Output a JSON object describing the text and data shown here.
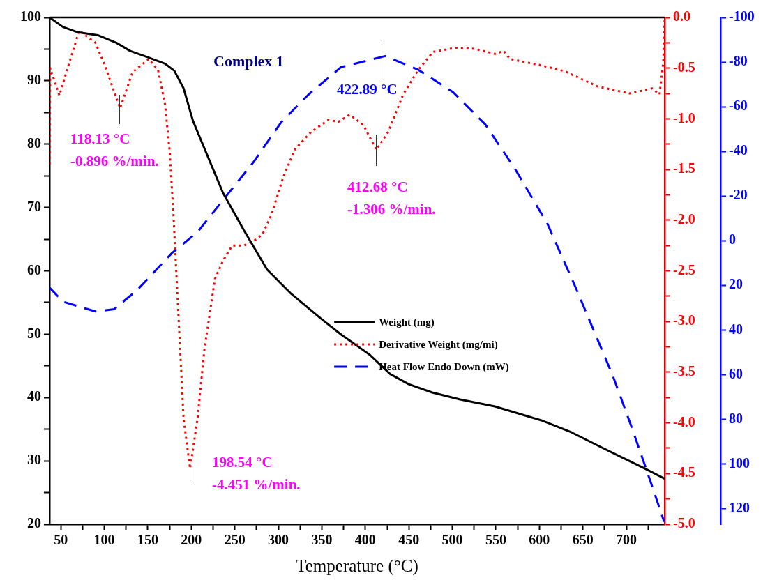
{
  "chart_data": {
    "type": "line",
    "xlabel": "Temperature (°C)",
    "legend": "center",
    "grid": false,
    "xlim": [
      37,
      744
    ],
    "xticks": [
      50,
      {
        "value": 75,
        "label": null
      },
      100,
      {
        "value": 125,
        "label": null
      },
      150,
      {
        "value": 175,
        "label": null
      },
      200,
      {
        "value": 225,
        "label": null
      },
      250,
      {
        "value": 275,
        "label": null
      },
      300,
      {
        "value": 325,
        "label": null
      },
      350,
      {
        "value": 375,
        "label": null
      },
      400,
      {
        "value": 425,
        "label": null
      },
      450,
      {
        "value": 475,
        "label": null
      },
      500,
      {
        "value": 525,
        "label": null
      },
      550,
      {
        "value": 575,
        "label": null
      },
      600,
      {
        "value": 625,
        "label": null
      },
      650,
      {
        "value": 675,
        "label": null
      },
      700,
      {
        "value": 725,
        "label": null
      }
    ],
    "ylim": [
      20,
      100
    ],
    "yticks": [
      20,
      {
        "value": 25,
        "label": null
      },
      30,
      {
        "value": 35,
        "label": null
      },
      40,
      {
        "value": 45,
        "label": null
      },
      50,
      {
        "value": 55,
        "label": null
      },
      60,
      {
        "value": 65,
        "label": null
      },
      70,
      {
        "value": 75,
        "label": null
      },
      80,
      {
        "value": 85,
        "label": null
      },
      90,
      {
        "value": 95,
        "label": null
      },
      100
    ],
    "y2lim": [
      -5,
      0
    ],
    "y2ticks": [
      {
        "value": -5,
        "label": "-5.0"
      },
      {
        "value": -4.75,
        "label": null
      },
      {
        "value": -4.5,
        "label": "-4.5"
      },
      {
        "value": -4.25,
        "label": null
      },
      {
        "value": -4,
        "label": "-4.0"
      },
      {
        "value": -3.75,
        "label": null
      },
      {
        "value": -3.5,
        "label": "-3.5"
      },
      {
        "value": -3.25,
        "label": null
      },
      {
        "value": -3,
        "label": "-3.0"
      },
      {
        "value": -2.75,
        "label": null
      },
      {
        "value": -2.5,
        "label": "-2.5"
      },
      {
        "value": -2.25,
        "label": null
      },
      {
        "value": -2,
        "label": "-2.0"
      },
      {
        "value": -1.75,
        "label": null
      },
      {
        "value": -1.5,
        "label": "-1.5"
      },
      {
        "value": -1.25,
        "label": null
      },
      {
        "value": -1,
        "label": "-1.0"
      },
      {
        "value": -0.75,
        "label": null
      },
      {
        "value": -0.5,
        "label": "-0.5"
      },
      {
        "value": -0.25,
        "label": null
      },
      {
        "value": 0,
        "label": "0.0"
      }
    ],
    "y3lim": [
      127,
      -100
    ],
    "y3ticks": [
      -100,
      -80,
      -60,
      -40,
      -20,
      0,
      20,
      40,
      60,
      80,
      100,
      120
    ],
    "series": [
      {
        "name": "Weight (mg)",
        "color": "#000000",
        "line_style": "solid",
        "x": [
          37,
          52.4,
          68.5,
          92.4,
          113.8,
          129.8,
          148.4,
          169.8,
          180.4,
          191.1,
          201.8,
          215.1,
          236.4,
          260.4,
          287.1,
          313.8,
          348.6,
          372.5,
          404.6,
          428.6,
          449.9,
          476.8,
          508.8,
          548.8,
          575.5,
          602.2,
          637,
          669,
          695.7,
          722.4,
          744
        ],
        "values": [
          100,
          98.5,
          97.7,
          97.2,
          96.0,
          94.7,
          93.8,
          92.7,
          91.6,
          88.8,
          83.7,
          79.3,
          72.3,
          66.4,
          60.2,
          56.5,
          52.5,
          49.9,
          46.8,
          43.7,
          42.1,
          40.8,
          39.7,
          38.6,
          37.5,
          36.4,
          34.5,
          32.3,
          30.5,
          28.7,
          27.2
        ]
      },
      {
        "name": "Derivative Weight (mg/mi)",
        "color": "#ff0000",
        "line_style": "dotted",
        "axis": "y2",
        "x": [
          37,
          37.8,
          48.4,
          52.5,
          71.1,
          89.8,
          100.4,
          118.13,
          132.4,
          151.1,
          161.8,
          169.8,
          175.1,
          179.1,
          183.1,
          187.1,
          191.1,
          198.54,
          207.1,
          215.1,
          227.1,
          236.4,
          247,
          260.4,
          271.1,
          281.8,
          292.4,
          305.8,
          319.1,
          337.6,
          357.6,
          369,
          381.9,
          397.6,
          412.68,
          426.2,
          443.4,
          460.6,
          477.8,
          503.4,
          526.2,
          549,
          559,
          566.2,
          600.5,
          629,
          666.7,
          703.8,
          729.5,
          738.1,
          742.4,
          744
        ],
        "values": [
          -1.45,
          -0.5,
          -0.77,
          -0.65,
          -0.13,
          -0.25,
          -0.47,
          -0.896,
          -0.54,
          -0.41,
          -0.52,
          -0.86,
          -1.32,
          -1.89,
          -2.58,
          -3.27,
          -3.96,
          -4.451,
          -3.96,
          -3.27,
          -2.58,
          -2.4,
          -2.25,
          -2.25,
          -2.21,
          -2.14,
          -1.94,
          -1.57,
          -1.3,
          -1.13,
          -1.01,
          -1.03,
          -0.96,
          -1.06,
          -1.306,
          -1.13,
          -0.76,
          -0.52,
          -0.34,
          -0.3,
          -0.31,
          -0.36,
          -0.33,
          -0.41,
          -0.47,
          -0.53,
          -0.68,
          -0.75,
          -0.7,
          -0.76,
          -0.44,
          0
        ]
      },
      {
        "name": "Heat Flow Endo Down (mW)",
        "color": "#0000ff",
        "line_style": "dashed",
        "axis": "y3",
        "x": [
          37,
          52.4,
          89.8,
          111.1,
          137.8,
          177.8,
          207.1,
          239.1,
          271.1,
          303.1,
          334.7,
          371.9,
          422.89,
          460.6,
          500.6,
          537.8,
          572.1,
          609.2,
          642.5,
          663.1,
          684.4,
          705.8,
          727.1,
          743.4
        ],
        "values": [
          21,
          27.3,
          31.7,
          30.7,
          22.1,
          5.5,
          -3.9,
          -19.5,
          -35,
          -53,
          -65.5,
          -77.7,
          -82.7,
          -76.6,
          -66.6,
          -52.1,
          -32.1,
          -7.6,
          21.7,
          40.8,
          60.5,
          83.3,
          107.2,
          125.9
        ]
      }
    ],
    "annotations": [
      "Complex 1",
      "118.13 °C\n-0.896 %/min.",
      "198.54 °C\n-4.451 %/min.",
      "412.68 °C\n-1.306 %/min.",
      "422.89 °C"
    ]
  }
}
